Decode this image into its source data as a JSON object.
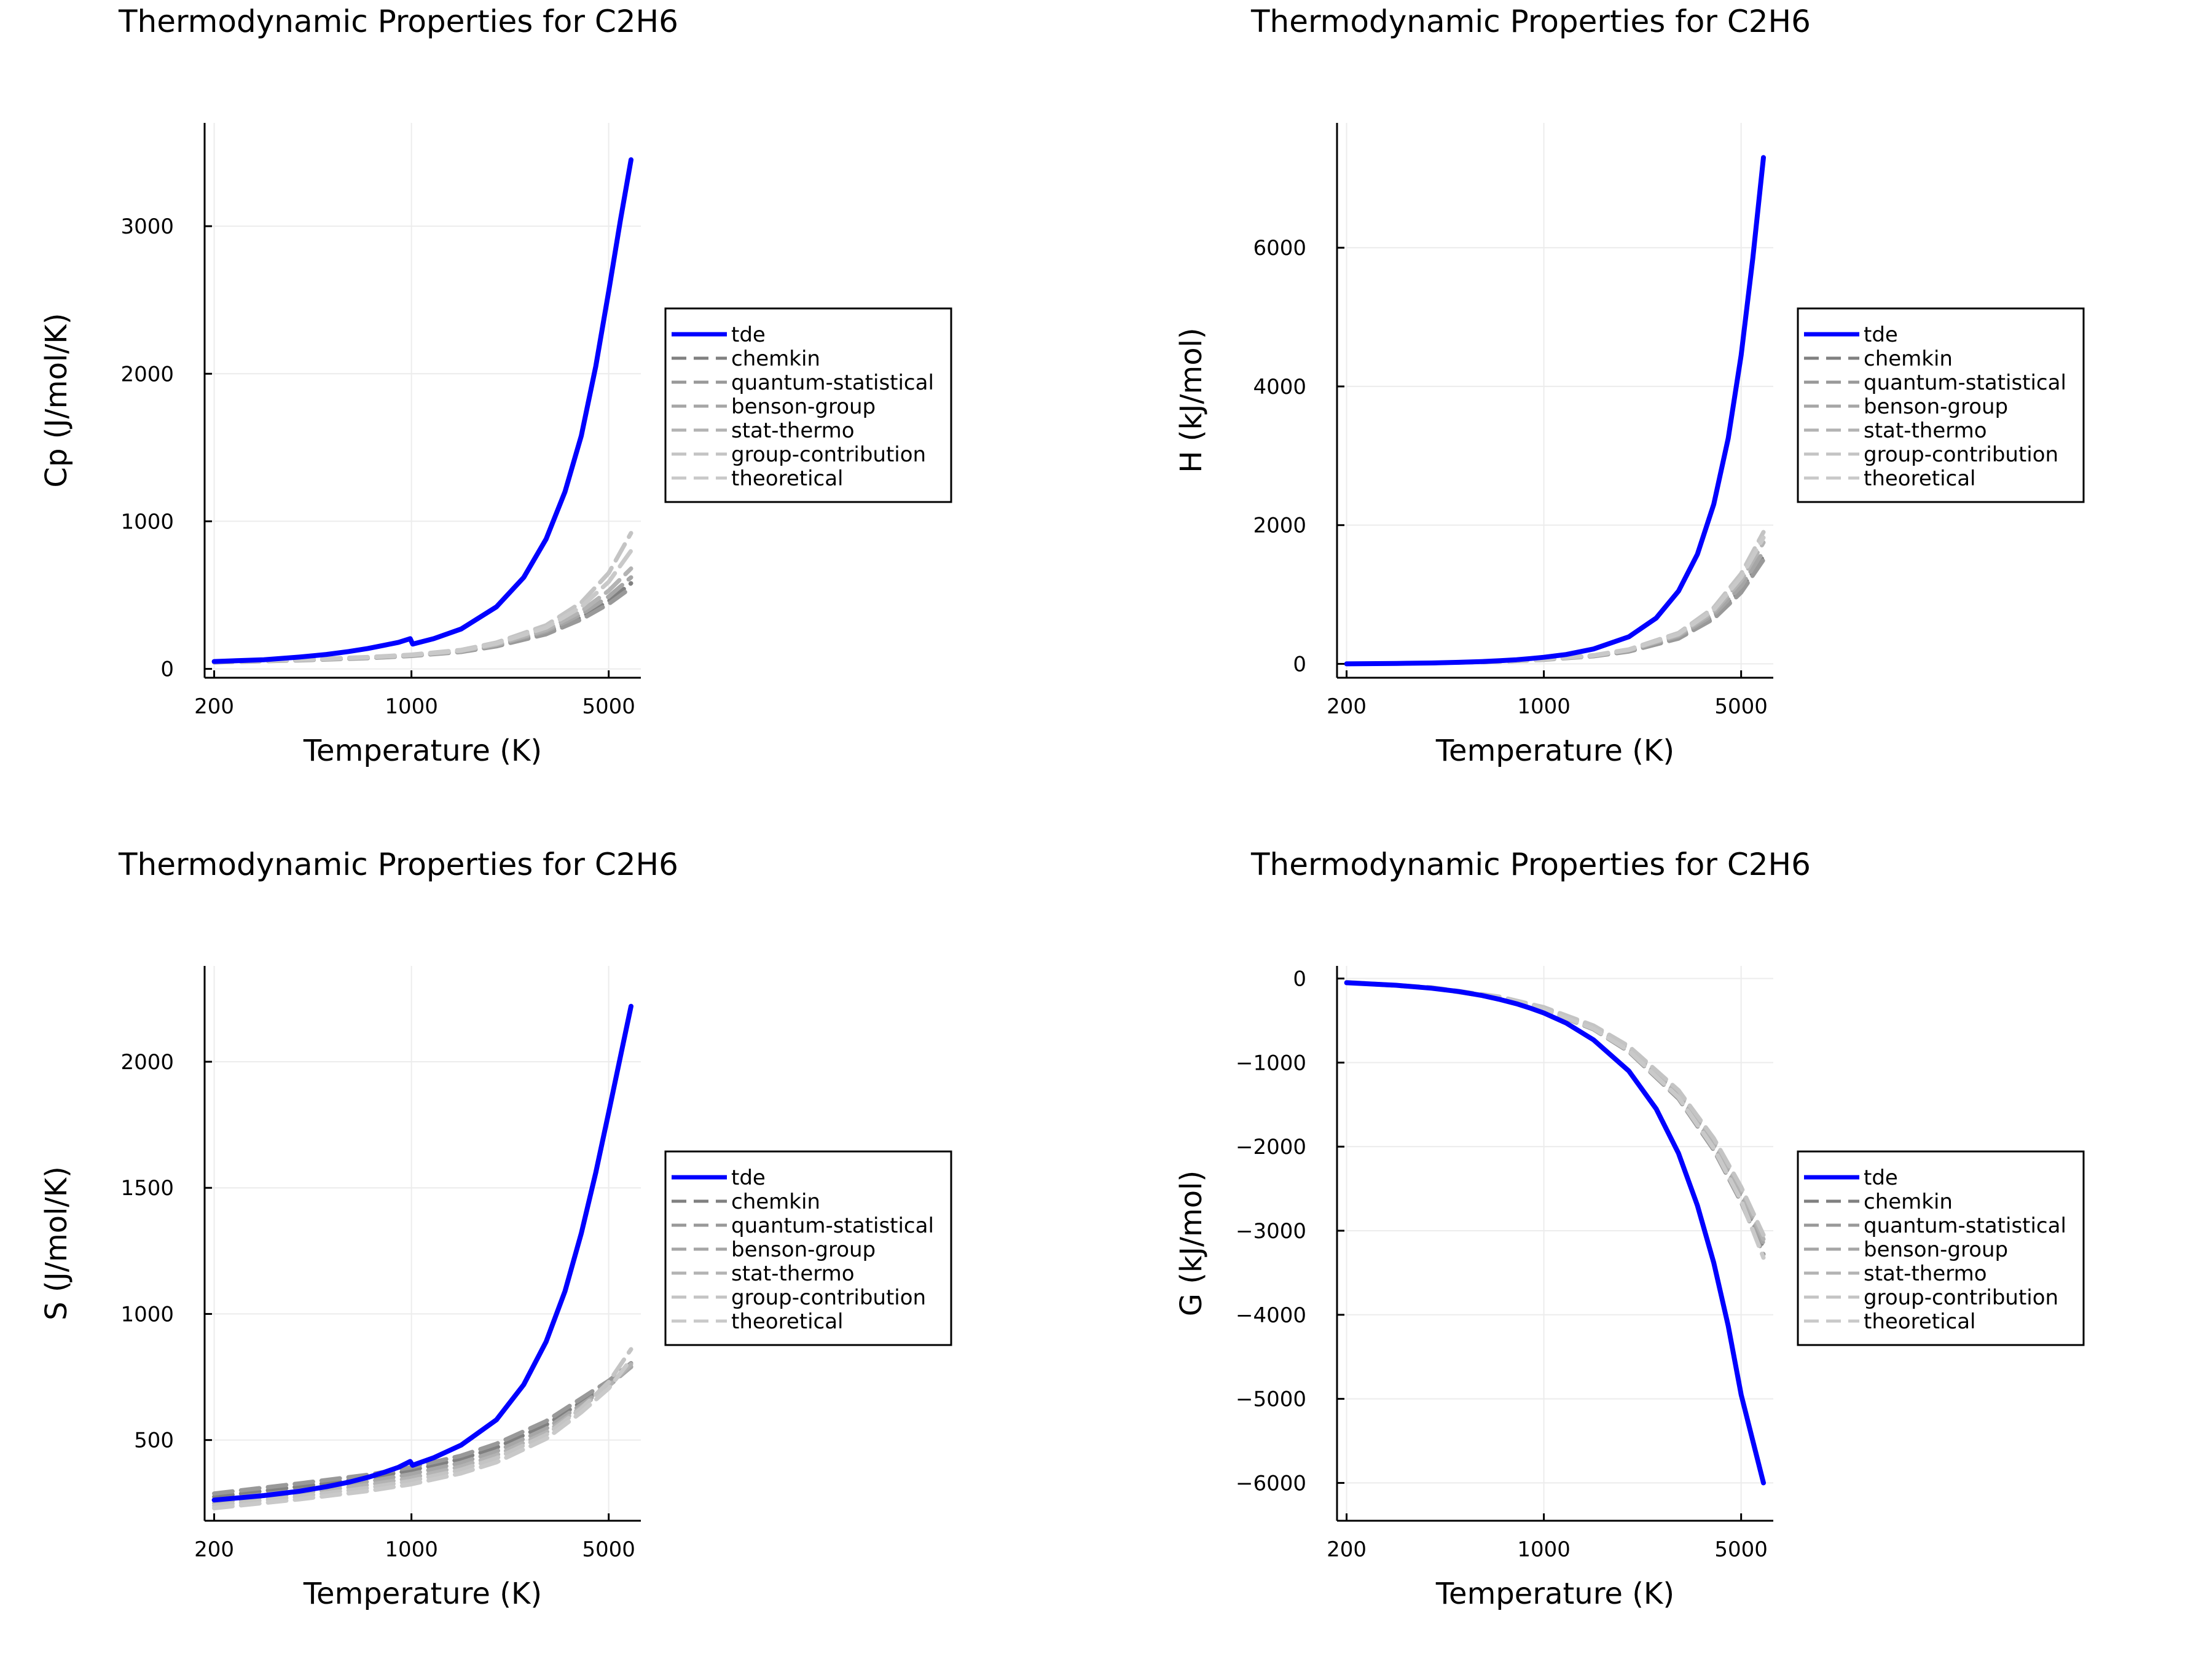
{
  "chart_data": [
    {
      "type": "line",
      "title": "Thermodynamic Properties for C2H6",
      "xlabel": "Temperature (K)",
      "ylabel": "Cp (J/mol/K)",
      "xscale": "log",
      "xlim": [
        185,
        6500
      ],
      "ylim": [
        -60,
        3700
      ],
      "xticks": [
        {
          "value": 200,
          "label": "200"
        },
        {
          "value": 1000,
          "label": "1000"
        },
        {
          "value": 5000,
          "label": "5000"
        }
      ],
      "yticks": [
        {
          "value": 0,
          "label": "0"
        },
        {
          "value": 1000,
          "label": "1000"
        },
        {
          "value": 2000,
          "label": "2000"
        },
        {
          "value": 3000,
          "label": "3000"
        }
      ],
      "grid": true,
      "legend_position": "outer-right",
      "series": [
        {
          "name": "tde",
          "color": "#0000ff",
          "dashed": false,
          "x": [
            200,
            300,
            400,
            500,
            600,
            700,
            800,
            900,
            990,
            1010,
            1200,
            1500,
            2000,
            2500,
            3000,
            3500,
            4000,
            4500,
            5000,
            5500,
            6000
          ],
          "y": [
            50,
            62,
            80,
            98,
            118,
            138,
            160,
            180,
            205,
            168,
            205,
            270,
            420,
            620,
            880,
            1200,
            1580,
            2050,
            2560,
            3040,
            3450
          ]
        },
        {
          "name": "chemkin",
          "color": "#808080",
          "dashed": true,
          "x": [
            200,
            400,
            700,
            1000,
            1500,
            2000,
            3000,
            4000,
            5000,
            6000
          ],
          "y": [
            45,
            60,
            75,
            90,
            118,
            158,
            245,
            350,
            460,
            580
          ]
        },
        {
          "name": "quantum-statistical",
          "color": "#999999",
          "dashed": true,
          "x": [
            200,
            400,
            700,
            1000,
            1500,
            2000,
            3000,
            4000,
            5000,
            6000
          ],
          "y": [
            44,
            58,
            73,
            88,
            115,
            153,
            235,
            335,
            440,
            550
          ]
        },
        {
          "name": "benson-group",
          "color": "#a6a6a6",
          "dashed": true,
          "x": [
            200,
            400,
            700,
            1000,
            1500,
            2000,
            3000,
            4000,
            5000,
            6000
          ],
          "y": [
            46,
            61,
            77,
            92,
            121,
            162,
            255,
            370,
            490,
            620
          ]
        },
        {
          "name": "stat-thermo",
          "color": "#b3b3b3",
          "dashed": true,
          "x": [
            200,
            400,
            700,
            1000,
            1500,
            2000,
            3000,
            4000,
            5000,
            6000
          ],
          "y": [
            45,
            60,
            76,
            91,
            120,
            165,
            265,
            390,
            530,
            680
          ]
        },
        {
          "name": "group-contribution",
          "color": "#c4c4c4",
          "dashed": true,
          "x": [
            200,
            400,
            700,
            1000,
            1500,
            2000,
            3000,
            4000,
            5000,
            6000
          ],
          "y": [
            47,
            63,
            80,
            96,
            128,
            178,
            295,
            450,
            650,
            920
          ]
        },
        {
          "name": "theoretical",
          "color": "#c9c9c9",
          "dashed": true,
          "x": [
            200,
            400,
            700,
            1000,
            1500,
            2000,
            3000,
            4000,
            5000,
            6000
          ],
          "y": [
            46,
            62,
            78,
            94,
            124,
            172,
            280,
            420,
            590,
            800
          ]
        }
      ]
    },
    {
      "type": "line",
      "title": "Thermodynamic Properties for C2H6",
      "xlabel": "Temperature (K)",
      "ylabel": "H (kJ/mol)",
      "xscale": "log",
      "xlim": [
        185,
        6500
      ],
      "ylim": [
        -200,
        7800
      ],
      "xticks": [
        {
          "value": 200,
          "label": "200"
        },
        {
          "value": 1000,
          "label": "1000"
        },
        {
          "value": 5000,
          "label": "5000"
        }
      ],
      "yticks": [
        {
          "value": 0,
          "label": "0"
        },
        {
          "value": 2000,
          "label": "2000"
        },
        {
          "value": 4000,
          "label": "4000"
        },
        {
          "value": 6000,
          "label": "6000"
        }
      ],
      "grid": true,
      "legend_position": "outer-right",
      "series": [
        {
          "name": "tde",
          "color": "#0000ff",
          "dashed": false,
          "x": [
            200,
            300,
            400,
            500,
            600,
            700,
            800,
            900,
            1000,
            1200,
            1500,
            2000,
            2500,
            3000,
            3500,
            4000,
            4500,
            5000,
            5500,
            6000
          ],
          "y": [
            0,
            6,
            13,
            22,
            32,
            45,
            60,
            77,
            95,
            135,
            215,
            390,
            660,
            1050,
            1580,
            2300,
            3250,
            4450,
            5850,
            7300
          ]
        },
        {
          "name": "chemkin",
          "color": "#808080",
          "dashed": true,
          "x": [
            200,
            400,
            700,
            1000,
            1500,
            2000,
            3000,
            4000,
            5000,
            6000
          ],
          "y": [
            0,
            11,
            35,
            62,
            115,
            185,
            380,
            680,
            1070,
            1550
          ]
        },
        {
          "name": "quantum-statistical",
          "color": "#999999",
          "dashed": true,
          "x": [
            200,
            400,
            700,
            1000,
            1500,
            2000,
            3000,
            4000,
            5000,
            6000
          ],
          "y": [
            0,
            10,
            33,
            60,
            110,
            178,
            365,
            650,
            1030,
            1500
          ]
        },
        {
          "name": "benson-group",
          "color": "#a6a6a6",
          "dashed": true,
          "x": [
            200,
            400,
            700,
            1000,
            1500,
            2000,
            3000,
            4000,
            5000,
            6000
          ],
          "y": [
            0,
            11,
            36,
            64,
            118,
            192,
            400,
            710,
            1120,
            1620
          ]
        },
        {
          "name": "stat-thermo",
          "color": "#b3b3b3",
          "dashed": true,
          "x": [
            200,
            400,
            700,
            1000,
            1500,
            2000,
            3000,
            4000,
            5000,
            6000
          ],
          "y": [
            0,
            11,
            35,
            63,
            117,
            195,
            415,
            750,
            1200,
            1750
          ]
        },
        {
          "name": "group-contribution",
          "color": "#c4c4c4",
          "dashed": true,
          "x": [
            200,
            400,
            700,
            1000,
            1500,
            2000,
            3000,
            4000,
            5000,
            6000
          ],
          "y": [
            0,
            12,
            37,
            66,
            124,
            208,
            445,
            810,
            1300,
            1900
          ]
        },
        {
          "name": "theoretical",
          "color": "#c9c9c9",
          "dashed": true,
          "x": [
            200,
            400,
            700,
            1000,
            1500,
            2000,
            3000,
            4000,
            5000,
            6000
          ],
          "y": [
            0,
            11,
            36,
            65,
            121,
            202,
            430,
            780,
            1250,
            1820
          ]
        }
      ]
    },
    {
      "type": "line",
      "title": "Thermodynamic Properties for C2H6",
      "xlabel": "Temperature (K)",
      "ylabel": "S (J/mol/K)",
      "xscale": "log",
      "xlim": [
        185,
        6500
      ],
      "ylim": [
        180,
        2380
      ],
      "xticks": [
        {
          "value": 200,
          "label": "200"
        },
        {
          "value": 1000,
          "label": "1000"
        },
        {
          "value": 5000,
          "label": "5000"
        }
      ],
      "yticks": [
        {
          "value": 500,
          "label": "500"
        },
        {
          "value": 1000,
          "label": "1000"
        },
        {
          "value": 1500,
          "label": "1500"
        },
        {
          "value": 2000,
          "label": "2000"
        }
      ],
      "grid": true,
      "legend_position": "outer-right",
      "series": [
        {
          "name": "tde",
          "color": "#0000ff",
          "dashed": false,
          "x": [
            200,
            300,
            400,
            500,
            600,
            700,
            800,
            900,
            990,
            1010,
            1200,
            1500,
            2000,
            2500,
            3000,
            3500,
            4000,
            4500,
            5000,
            5500,
            6000
          ],
          "y": [
            262,
            280,
            297,
            315,
            333,
            352,
            372,
            392,
            415,
            400,
            430,
            480,
            580,
            720,
            890,
            1090,
            1320,
            1560,
            1800,
            2020,
            2220
          ]
        },
        {
          "name": "chemkin",
          "color": "#808080",
          "dashed": true,
          "x": [
            200,
            400,
            700,
            1000,
            1500,
            2000,
            3000,
            4000,
            5000,
            6000
          ],
          "y": [
            275,
            315,
            350,
            380,
            425,
            470,
            560,
            650,
            720,
            790
          ]
        },
        {
          "name": "quantum-statistical",
          "color": "#999999",
          "dashed": true,
          "x": [
            200,
            400,
            700,
            1000,
            1500,
            2000,
            3000,
            4000,
            5000,
            6000
          ],
          "y": [
            288,
            328,
            362,
            392,
            438,
            485,
            575,
            665,
            735,
            805
          ]
        },
        {
          "name": "benson-group",
          "color": "#a6a6a6",
          "dashed": true,
          "x": [
            200,
            400,
            700,
            1000,
            1500,
            2000,
            3000,
            4000,
            5000,
            6000
          ],
          "y": [
            262,
            300,
            335,
            365,
            410,
            455,
            545,
            640,
            715,
            790
          ]
        },
        {
          "name": "stat-thermo",
          "color": "#b3b3b3",
          "dashed": true,
          "x": [
            200,
            400,
            700,
            1000,
            1500,
            2000,
            3000,
            4000,
            5000,
            6000
          ],
          "y": [
            250,
            288,
            322,
            350,
            395,
            440,
            530,
            630,
            715,
            800
          ]
        },
        {
          "name": "group-contribution",
          "color": "#c4c4c4",
          "dashed": true,
          "x": [
            200,
            400,
            700,
            1000,
            1500,
            2000,
            3000,
            4000,
            5000,
            6000
          ],
          "y": [
            240,
            276,
            310,
            338,
            382,
            428,
            520,
            625,
            730,
            860
          ]
        },
        {
          "name": "theoretical",
          "color": "#c9c9c9",
          "dashed": true,
          "x": [
            200,
            400,
            700,
            1000,
            1500,
            2000,
            3000,
            4000,
            5000,
            6000
          ],
          "y": [
            230,
            265,
            298,
            325,
            368,
            412,
            505,
            610,
            705,
            820
          ]
        }
      ]
    },
    {
      "type": "line",
      "title": "Thermodynamic Properties for C2H6",
      "xlabel": "Temperature (K)",
      "ylabel": "G (kJ/mol)",
      "xscale": "log",
      "xlim": [
        185,
        6500
      ],
      "ylim": [
        -6450,
        150
      ],
      "xticks": [
        {
          "value": 200,
          "label": "200"
        },
        {
          "value": 1000,
          "label": "1000"
        },
        {
          "value": 5000,
          "label": "5000"
        }
      ],
      "yticks": [
        {
          "value": 0,
          "label": "0"
        },
        {
          "value": -1000,
          "label": "−1000"
        },
        {
          "value": -2000,
          "label": "−2000"
        },
        {
          "value": -3000,
          "label": "−3000"
        },
        {
          "value": -4000,
          "label": "−4000"
        },
        {
          "value": -5000,
          "label": "−5000"
        },
        {
          "value": -6000,
          "label": "−6000"
        }
      ],
      "grid": true,
      "legend_position": "outer-right",
      "series": [
        {
          "name": "tde",
          "color": "#0000ff",
          "dashed": false,
          "x": [
            200,
            300,
            400,
            500,
            600,
            700,
            800,
            900,
            1000,
            1200,
            1500,
            2000,
            2500,
            3000,
            3500,
            4000,
            4500,
            5000,
            5500,
            6000
          ],
          "y": [
            -50,
            -80,
            -115,
            -155,
            -200,
            -250,
            -300,
            -355,
            -410,
            -530,
            -730,
            -1100,
            -1550,
            -2080,
            -2700,
            -3380,
            -4130,
            -4950,
            -5500,
            -6000
          ]
        },
        {
          "name": "chemkin",
          "color": "#808080",
          "dashed": true,
          "x": [
            200,
            400,
            700,
            1000,
            1500,
            2000,
            3000,
            4000,
            5000,
            6000
          ],
          "y": [
            -45,
            -110,
            -230,
            -360,
            -590,
            -850,
            -1400,
            -2000,
            -2600,
            -3200
          ]
        },
        {
          "name": "quantum-statistical",
          "color": "#999999",
          "dashed": true,
          "x": [
            200,
            400,
            700,
            1000,
            1500,
            2000,
            3000,
            4000,
            5000,
            6000
          ],
          "y": [
            -47,
            -113,
            -236,
            -370,
            -605,
            -870,
            -1430,
            -2040,
            -2660,
            -3280
          ]
        },
        {
          "name": "benson-group",
          "color": "#a6a6a6",
          "dashed": true,
          "x": [
            200,
            400,
            700,
            1000,
            1500,
            2000,
            3000,
            4000,
            5000,
            6000
          ],
          "y": [
            -45,
            -108,
            -226,
            -355,
            -580,
            -835,
            -1375,
            -1960,
            -2560,
            -3150
          ]
        },
        {
          "name": "stat-thermo",
          "color": "#b3b3b3",
          "dashed": true,
          "x": [
            200,
            400,
            700,
            1000,
            1500,
            2000,
            3000,
            4000,
            5000,
            6000
          ],
          "y": [
            -44,
            -106,
            -222,
            -348,
            -570,
            -820,
            -1350,
            -1930,
            -2520,
            -3100
          ]
        },
        {
          "name": "group-contribution",
          "color": "#c4c4c4",
          "dashed": true,
          "x": [
            200,
            400,
            700,
            1000,
            1500,
            2000,
            3000,
            4000,
            5000,
            6000
          ],
          "y": [
            -43,
            -104,
            -218,
            -342,
            -560,
            -805,
            -1330,
            -1900,
            -2480,
            -3050
          ]
        },
        {
          "name": "theoretical",
          "color": "#c9c9c9",
          "dashed": true,
          "x": [
            200,
            400,
            700,
            1000,
            1500,
            2000,
            3000,
            4000,
            5000,
            6000
          ],
          "y": [
            -46,
            -111,
            -232,
            -365,
            -598,
            -860,
            -1415,
            -2020,
            -2640,
            -3320
          ]
        }
      ]
    }
  ]
}
